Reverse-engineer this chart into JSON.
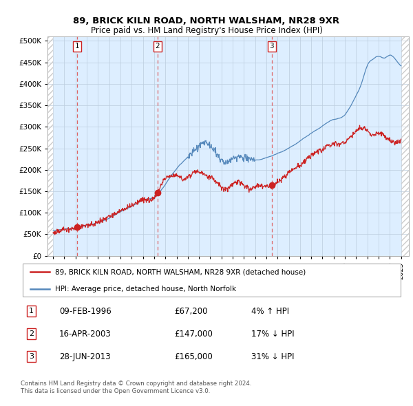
{
  "title1": "89, BRICK KILN ROAD, NORTH WALSHAM, NR28 9XR",
  "title2": "Price paid vs. HM Land Registry's House Price Index (HPI)",
  "plot_bg_color": "#ddeeff",
  "grid_color": "#bbccdd",
  "sale_info": [
    {
      "label": "1",
      "date": "09-FEB-1996",
      "price": "£67,200",
      "hpi": "4% ↑ HPI"
    },
    {
      "label": "2",
      "date": "16-APR-2003",
      "price": "£147,000",
      "hpi": "17% ↓ HPI"
    },
    {
      "label": "3",
      "date": "28-JUN-2013",
      "price": "£165,000",
      "hpi": "31% ↓ HPI"
    }
  ],
  "legend_property": "89, BRICK KILN ROAD, NORTH WALSHAM, NR28 9XR (detached house)",
  "legend_hpi": "HPI: Average price, detached house, North Norfolk",
  "footnote": "Contains HM Land Registry data © Crown copyright and database right 2024.\nThis data is licensed under the Open Government Licence v3.0.",
  "ylim": [
    0,
    510000
  ],
  "yticks": [
    0,
    50000,
    100000,
    150000,
    200000,
    250000,
    300000,
    350000,
    400000,
    450000,
    500000
  ],
  "yticklabels": [
    "£0",
    "£50K",
    "£100K",
    "£150K",
    "£200K",
    "£250K",
    "£300K",
    "£350K",
    "£400K",
    "£450K",
    "£500K"
  ],
  "xlim_start": 1993.5,
  "xlim_end": 2025.7,
  "hpi_color": "#5588bb",
  "property_color": "#cc2222",
  "dashed_line_color": "#dd6666",
  "sale_prices": [
    67200,
    147000,
    165000
  ],
  "sale_years": [
    1996.12,
    2003.29,
    2013.49
  ]
}
